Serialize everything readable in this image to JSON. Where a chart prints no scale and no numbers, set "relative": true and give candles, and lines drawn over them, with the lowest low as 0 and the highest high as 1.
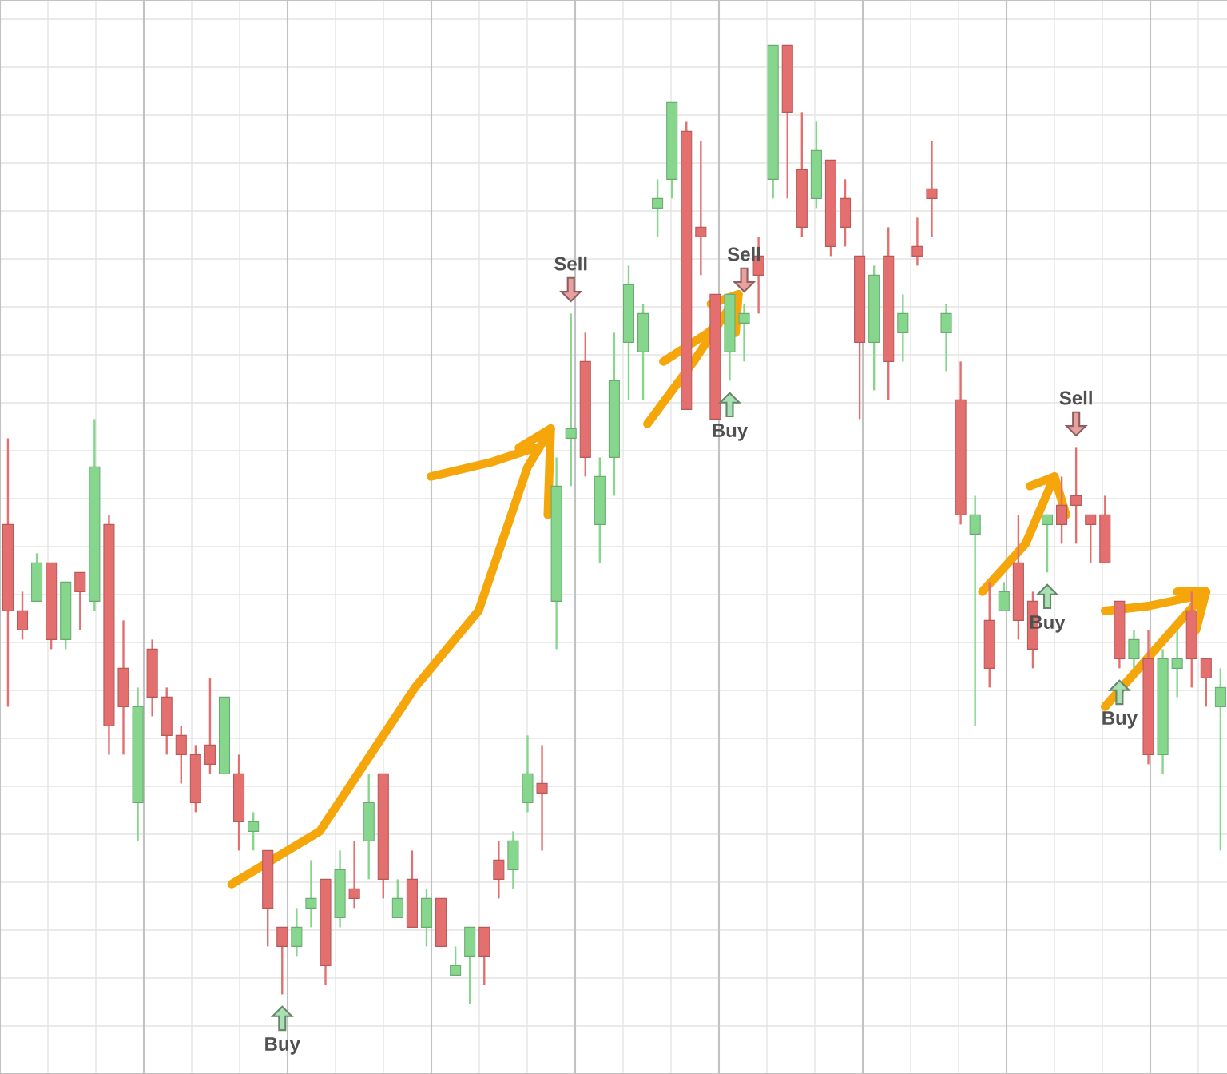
{
  "chart_data": {
    "type": "candlestick",
    "relative": true,
    "grid": true,
    "categories": [
      null,
      null,
      null,
      null,
      null,
      null,
      null,
      null,
      null,
      null,
      null,
      null,
      null,
      null,
      null,
      null,
      null,
      null,
      null,
      null,
      null,
      null,
      null,
      null,
      null,
      null,
      null,
      null,
      null,
      null,
      null,
      null,
      null,
      null,
      null,
      null,
      null,
      null,
      null,
      null,
      null,
      null,
      null,
      null,
      null,
      null,
      null,
      null,
      null,
      null,
      null,
      null,
      null,
      null,
      null,
      null,
      null,
      null,
      null,
      null,
      null,
      null,
      null,
      null,
      null,
      null,
      null,
      null,
      null,
      null,
      null,
      null,
      null,
      null,
      null,
      null,
      null,
      null,
      null,
      null,
      null,
      null,
      null,
      null,
      null
    ],
    "ohlc": [
      [
        0.5,
        0.59,
        0.31,
        0.41
      ],
      [
        0.41,
        0.43,
        0.38,
        0.39
      ],
      [
        0.42,
        0.47,
        0.42,
        0.46
      ],
      [
        0.46,
        0.46,
        0.37,
        0.38
      ],
      [
        0.38,
        0.44,
        0.37,
        0.44
      ],
      [
        0.45,
        0.45,
        0.39,
        0.43
      ],
      [
        0.42,
        0.61,
        0.41,
        0.56
      ],
      [
        0.5,
        0.51,
        0.26,
        0.29
      ],
      [
        0.35,
        0.4,
        0.26,
        0.31
      ],
      [
        0.21,
        0.33,
        0.17,
        0.31
      ],
      [
        0.37,
        0.38,
        0.3,
        0.32
      ],
      [
        0.32,
        0.33,
        0.26,
        0.28
      ],
      [
        0.28,
        0.29,
        0.23,
        0.26
      ],
      [
        0.26,
        0.27,
        0.2,
        0.21
      ],
      [
        0.27,
        0.34,
        0.24,
        0.25
      ],
      [
        0.24,
        0.32,
        0.24,
        0.32
      ],
      [
        0.24,
        0.26,
        0.16,
        0.19
      ],
      [
        0.18,
        0.2,
        0.16,
        0.19
      ],
      [
        0.16,
        0.16,
        0.06,
        0.1
      ],
      [
        0.08,
        0.08,
        0.01,
        0.06
      ],
      [
        0.06,
        0.1,
        0.05,
        0.08
      ],
      [
        0.1,
        0.15,
        0.08,
        0.11
      ],
      [
        0.13,
        0.13,
        0.02,
        0.04
      ],
      [
        0.09,
        0.16,
        0.08,
        0.14
      ],
      [
        0.12,
        0.17,
        0.1,
        0.11
      ],
      [
        0.17,
        0.24,
        0.13,
        0.21
      ],
      [
        0.24,
        0.24,
        0.11,
        0.13
      ],
      [
        0.09,
        0.13,
        0.09,
        0.11
      ],
      [
        0.13,
        0.16,
        0.08,
        0.08
      ],
      [
        0.08,
        0.12,
        0.06,
        0.11
      ],
      [
        0.11,
        0.11,
        0.06,
        0.06
      ],
      [
        0.03,
        0.06,
        0.03,
        0.04
      ],
      [
        0.05,
        0.08,
        0.0,
        0.08
      ],
      [
        0.08,
        0.08,
        0.02,
        0.05
      ],
      [
        0.15,
        0.17,
        0.11,
        0.13
      ],
      [
        0.14,
        0.18,
        0.12,
        0.17
      ],
      [
        0.21,
        0.28,
        0.2,
        0.24
      ],
      [
        0.23,
        0.27,
        0.16,
        0.22
      ],
      [
        0.42,
        0.57,
        0.37,
        0.54
      ],
      [
        0.59,
        0.72,
        0.54,
        0.6
      ],
      [
        0.67,
        0.7,
        0.55,
        0.57
      ],
      [
        0.5,
        0.57,
        0.46,
        0.55
      ],
      [
        0.57,
        0.7,
        0.53,
        0.65
      ],
      [
        0.69,
        0.77,
        0.63,
        0.75
      ],
      [
        0.68,
        0.73,
        0.63,
        0.72
      ],
      [
        0.83,
        0.86,
        0.8,
        0.84
      ],
      [
        0.86,
        0.94,
        0.84,
        0.94
      ],
      [
        0.91,
        0.92,
        0.62,
        0.62
      ],
      [
        0.81,
        0.9,
        0.76,
        0.8
      ],
      [
        0.74,
        0.74,
        0.61,
        0.61
      ],
      [
        0.68,
        0.74,
        0.65,
        0.74
      ],
      [
        0.71,
        0.73,
        0.67,
        0.72
      ],
      [
        0.78,
        0.8,
        0.72,
        0.76
      ],
      [
        0.86,
        1.0,
        0.84,
        1.0
      ],
      [
        1.0,
        1.0,
        0.84,
        0.93
      ],
      [
        0.87,
        0.93,
        0.8,
        0.81
      ],
      [
        0.84,
        0.92,
        0.83,
        0.89
      ],
      [
        0.88,
        0.88,
        0.78,
        0.79
      ],
      [
        0.84,
        0.86,
        0.79,
        0.81
      ],
      [
        0.78,
        0.78,
        0.61,
        0.69
      ],
      [
        0.69,
        0.77,
        0.64,
        0.76
      ],
      [
        0.78,
        0.81,
        0.63,
        0.67
      ],
      [
        0.7,
        0.74,
        0.67,
        0.72
      ],
      [
        0.79,
        0.82,
        0.77,
        0.78
      ],
      [
        0.85,
        0.9,
        0.8,
        0.84
      ],
      [
        0.7,
        0.73,
        0.66,
        0.72
      ],
      [
        0.63,
        0.67,
        0.5,
        0.51
      ],
      [
        0.49,
        0.53,
        0.29,
        0.51
      ],
      [
        0.4,
        0.44,
        0.33,
        0.35
      ],
      [
        0.41,
        0.44,
        0.41,
        0.43
      ],
      [
        0.46,
        0.51,
        0.38,
        0.4
      ],
      [
        0.42,
        0.43,
        0.35,
        0.37
      ],
      [
        0.5,
        0.51,
        0.45,
        0.51
      ],
      [
        0.52,
        0.55,
        0.48,
        0.5
      ],
      [
        0.53,
        0.58,
        0.48,
        0.52
      ],
      [
        0.51,
        0.51,
        0.46,
        0.5
      ],
      [
        0.51,
        0.53,
        0.46,
        0.46
      ],
      [
        0.42,
        0.42,
        0.35,
        0.36
      ],
      [
        0.36,
        0.39,
        0.35,
        0.38
      ],
      [
        0.36,
        0.39,
        0.25,
        0.26
      ],
      [
        0.26,
        0.37,
        0.24,
        0.36
      ],
      [
        0.35,
        0.39,
        0.32,
        0.36
      ],
      [
        0.41,
        0.43,
        0.33,
        0.36
      ],
      [
        0.36,
        0.36,
        0.31,
        0.34
      ],
      [
        0.31,
        0.35,
        0.16,
        0.33
      ]
    ],
    "colors": [
      "#e36f6f",
      "#e36f6f",
      "#86d68e",
      "#e36f6f",
      "#86d68e",
      "#e36f6f",
      "#86d68e",
      "#e36f6f",
      "#e36f6f",
      "#86d68e",
      "#e36f6f",
      "#e36f6f",
      "#e36f6f",
      "#e36f6f",
      "#e36f6f",
      "#86d68e",
      "#e36f6f",
      "#86d68e",
      "#e36f6f",
      "#e36f6f",
      "#86d68e",
      "#86d68e",
      "#e36f6f",
      "#86d68e",
      "#e36f6f",
      "#86d68e",
      "#e36f6f",
      "#86d68e",
      "#e36f6f",
      "#86d68e",
      "#e36f6f",
      "#86d68e",
      "#86d68e",
      "#e36f6f",
      "#e36f6f",
      "#86d68e",
      "#86d68e",
      "#e36f6f",
      "#86d68e",
      "#86d68e",
      "#e36f6f",
      "#86d68e",
      "#86d68e",
      "#86d68e",
      "#86d68e",
      "#86d68e",
      "#86d68e",
      "#e36f6f",
      "#e36f6f",
      "#e36f6f",
      "#86d68e",
      "#86d68e",
      "#e36f6f",
      "#86d68e",
      "#e36f6f",
      "#e36f6f",
      "#86d68e",
      "#e36f6f",
      "#e36f6f",
      "#e36f6f",
      "#86d68e",
      "#e36f6f",
      "#86d68e",
      "#e36f6f",
      "#e36f6f",
      "#86d68e",
      "#e36f6f",
      "#86d68e",
      "#e36f6f",
      "#86d68e",
      "#e36f6f",
      "#e36f6f",
      "#86d68e",
      "#e36f6f",
      "#e36f6f",
      "#e36f6f",
      "#e36f6f",
      "#e36f6f",
      "#86d68e",
      "#e36f6f",
      "#86d68e",
      "#86d68e",
      "#e36f6f",
      "#e36f6f",
      "#86d68e"
    ],
    "annotations": [
      "Buy",
      "Sell",
      "Buy",
      "Sell",
      "Buy",
      "Sell",
      "Buy"
    ]
  }
}
